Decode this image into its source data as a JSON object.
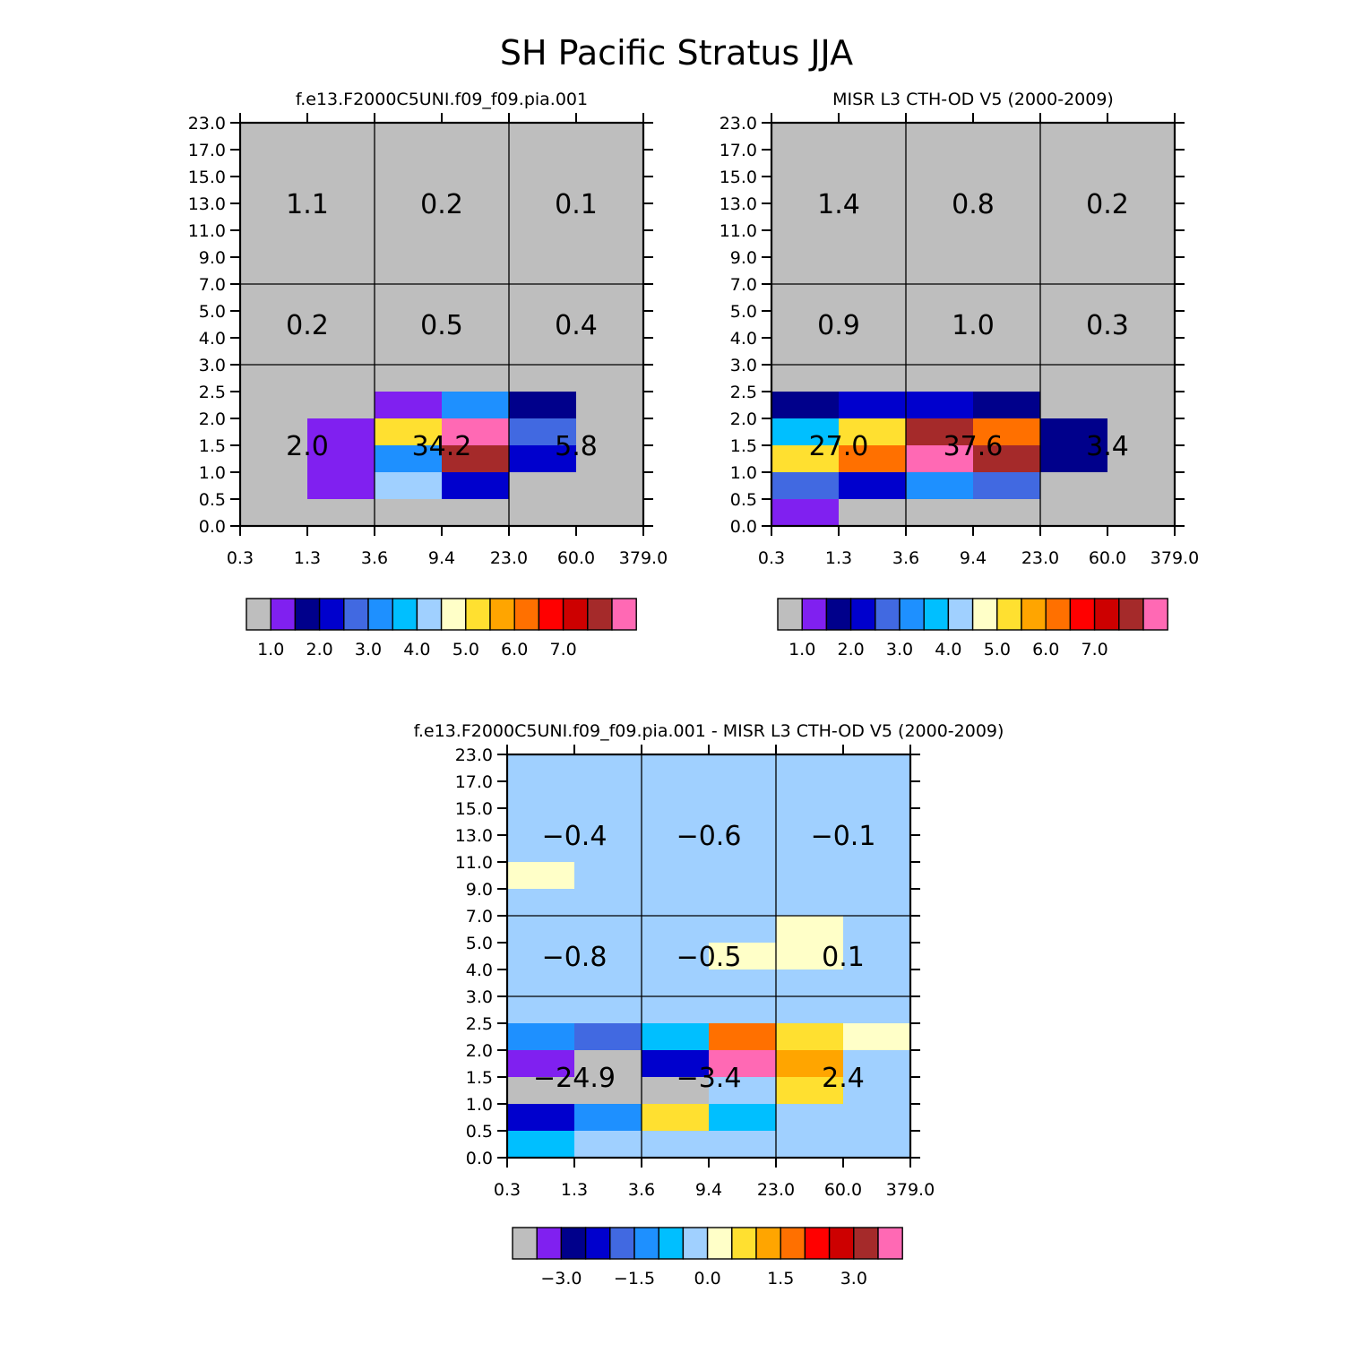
{
  "title": "SH Pacific Stratus JJA",
  "colors": {
    "abs_palette": [
      "#bebebe",
      "#8020f0",
      "#00008b",
      "#0000cd",
      "#4169e1",
      "#1e90ff",
      "#00bfff",
      "#a0d0ff",
      "#ffffc8",
      "#ffe030",
      "#ffa500",
      "#ff7000",
      "#ff0000",
      "#cd0000",
      "#a52a2a",
      "#ff69b4"
    ],
    "diff_palette": [
      "#bebebe",
      "#8020f0",
      "#00008b",
      "#0000cd",
      "#4169e1",
      "#1e90ff",
      "#00bfff",
      "#a0d0ff",
      "#ffffc8",
      "#ffe030",
      "#ffa500",
      "#ff7000",
      "#ff0000",
      "#cd0000",
      "#a52a2a",
      "#ff69b4"
    ]
  },
  "chart_data": [
    {
      "type": "heatmap",
      "title": "f.e13.F2000C5UNI.f09_f09.pia.001",
      "x_ticks": [
        "0.3",
        "1.3",
        "3.6",
        "9.4",
        "23.0",
        "60.0",
        "379.0"
      ],
      "y_ticks": [
        "0.0",
        "0.5",
        "1.0",
        "1.5",
        "2.0",
        "2.5",
        "3.0",
        "4.0",
        "5.0",
        "7.0",
        "9.0",
        "11.0",
        "13.0",
        "15.0",
        "17.0",
        "23.0"
      ],
      "group_y_bounds": [
        0,
        6,
        9,
        15
      ],
      "group_x_bounds": [
        0,
        2,
        4,
        6
      ],
      "background": 0,
      "cells": [
        {
          "x": 1,
          "y": 1,
          "c": 1
        },
        {
          "x": 1,
          "y": 2,
          "c": 1
        },
        {
          "x": 1,
          "y": 3,
          "c": 1
        },
        {
          "x": 2,
          "y": 1,
          "c": 7
        },
        {
          "x": 2,
          "y": 2,
          "c": 5
        },
        {
          "x": 2,
          "y": 3,
          "c": 9
        },
        {
          "x": 2,
          "y": 4,
          "c": 1
        },
        {
          "x": 3,
          "y": 1,
          "c": 3
        },
        {
          "x": 3,
          "y": 2,
          "c": 14
        },
        {
          "x": 3,
          "y": 3,
          "c": 15
        },
        {
          "x": 3,
          "y": 4,
          "c": 5
        },
        {
          "x": 4,
          "y": 2,
          "c": 3
        },
        {
          "x": 4,
          "y": 3,
          "c": 4
        },
        {
          "x": 4,
          "y": 4,
          "c": 2
        }
      ],
      "group_values": [
        {
          "label": "1.1",
          "gx": 0,
          "gy": 2
        },
        {
          "label": "0.2",
          "gx": 1,
          "gy": 2
        },
        {
          "label": "0.1",
          "gx": 2,
          "gy": 2
        },
        {
          "label": "0.2",
          "gx": 0,
          "gy": 1
        },
        {
          "label": "0.5",
          "gx": 1,
          "gy": 1
        },
        {
          "label": "0.4",
          "gx": 2,
          "gy": 1
        },
        {
          "label": "2.0",
          "gx": 0,
          "gy": 0
        },
        {
          "label": "34.2",
          "gx": 1,
          "gy": 0
        },
        {
          "label": "5.8",
          "gx": 2,
          "gy": 0
        }
      ],
      "colorbar_labels": [
        "1.0",
        "2.0",
        "3.0",
        "4.0",
        "5.0",
        "6.0",
        "7.0"
      ],
      "colorbar_boundaries": [
        1,
        3,
        5,
        7,
        9,
        11,
        13
      ]
    },
    {
      "type": "heatmap",
      "title": "MISR L3 CTH-OD V5 (2000-2009)",
      "x_ticks": [
        "0.3",
        "1.3",
        "3.6",
        "9.4",
        "23.0",
        "60.0",
        "379.0"
      ],
      "y_ticks": [
        "0.0",
        "0.5",
        "1.0",
        "1.5",
        "2.0",
        "2.5",
        "3.0",
        "4.0",
        "5.0",
        "7.0",
        "9.0",
        "11.0",
        "13.0",
        "15.0",
        "17.0",
        "23.0"
      ],
      "group_y_bounds": [
        0,
        6,
        9,
        15
      ],
      "group_x_bounds": [
        0,
        2,
        4,
        6
      ],
      "background": 0,
      "cells": [
        {
          "x": 0,
          "y": 0,
          "c": 1
        },
        {
          "x": 0,
          "y": 1,
          "c": 4
        },
        {
          "x": 0,
          "y": 2,
          "c": 9
        },
        {
          "x": 0,
          "y": 3,
          "c": 6
        },
        {
          "x": 0,
          "y": 4,
          "c": 2
        },
        {
          "x": 1,
          "y": 1,
          "c": 3
        },
        {
          "x": 1,
          "y": 2,
          "c": 11
        },
        {
          "x": 1,
          "y": 3,
          "c": 9
        },
        {
          "x": 1,
          "y": 4,
          "c": 3
        },
        {
          "x": 2,
          "y": 1,
          "c": 5
        },
        {
          "x": 2,
          "y": 2,
          "c": 15
        },
        {
          "x": 2,
          "y": 3,
          "c": 14
        },
        {
          "x": 2,
          "y": 4,
          "c": 3
        },
        {
          "x": 3,
          "y": 1,
          "c": 4
        },
        {
          "x": 3,
          "y": 2,
          "c": 14
        },
        {
          "x": 3,
          "y": 3,
          "c": 11
        },
        {
          "x": 3,
          "y": 4,
          "c": 2
        },
        {
          "x": 4,
          "y": 2,
          "c": 2
        },
        {
          "x": 4,
          "y": 3,
          "c": 2
        }
      ],
      "group_values": [
        {
          "label": "1.4",
          "gx": 0,
          "gy": 2
        },
        {
          "label": "0.8",
          "gx": 1,
          "gy": 2
        },
        {
          "label": "0.2",
          "gx": 2,
          "gy": 2
        },
        {
          "label": "0.9",
          "gx": 0,
          "gy": 1
        },
        {
          "label": "1.0",
          "gx": 1,
          "gy": 1
        },
        {
          "label": "0.3",
          "gx": 2,
          "gy": 1
        },
        {
          "label": "27.0",
          "gx": 0,
          "gy": 0
        },
        {
          "label": "37.6",
          "gx": 1,
          "gy": 0
        },
        {
          "label": "3.4",
          "gx": 2,
          "gy": 0
        }
      ],
      "colorbar_labels": [
        "1.0",
        "2.0",
        "3.0",
        "4.0",
        "5.0",
        "6.0",
        "7.0"
      ],
      "colorbar_boundaries": [
        1,
        3,
        5,
        7,
        9,
        11,
        13
      ]
    },
    {
      "type": "heatmap",
      "title": "f.e13.F2000C5UNI.f09_f09.pia.001 - MISR L3 CTH-OD V5 (2000-2009)",
      "x_ticks": [
        "0.3",
        "1.3",
        "3.6",
        "9.4",
        "23.0",
        "60.0",
        "379.0"
      ],
      "y_ticks": [
        "0.0",
        "0.5",
        "1.0",
        "1.5",
        "2.0",
        "2.5",
        "3.0",
        "4.0",
        "5.0",
        "7.0",
        "9.0",
        "11.0",
        "13.0",
        "15.0",
        "17.0",
        "23.0"
      ],
      "group_y_bounds": [
        0,
        6,
        9,
        15
      ],
      "group_x_bounds": [
        0,
        2,
        4,
        6
      ],
      "background": 7,
      "cells": [
        {
          "x": 0,
          "y": 0,
          "c": 6
        },
        {
          "x": 0,
          "y": 1,
          "c": 3
        },
        {
          "x": 0,
          "y": 2,
          "c": 0
        },
        {
          "x": 0,
          "y": 3,
          "c": 1
        },
        {
          "x": 0,
          "y": 4,
          "c": 5
        },
        {
          "x": 0,
          "y": 10,
          "c": 8
        },
        {
          "x": 1,
          "y": 1,
          "c": 5
        },
        {
          "x": 1,
          "y": 2,
          "c": 0
        },
        {
          "x": 1,
          "y": 3,
          "c": 0
        },
        {
          "x": 1,
          "y": 4,
          "c": 4
        },
        {
          "x": 2,
          "y": 1,
          "c": 9
        },
        {
          "x": 2,
          "y": 2,
          "c": 0
        },
        {
          "x": 2,
          "y": 3,
          "c": 3
        },
        {
          "x": 2,
          "y": 4,
          "c": 6
        },
        {
          "x": 3,
          "y": 1,
          "c": 6
        },
        {
          "x": 3,
          "y": 3,
          "c": 15
        },
        {
          "x": 3,
          "y": 4,
          "c": 11
        },
        {
          "x": 3,
          "y": 7,
          "c": 8
        },
        {
          "x": 4,
          "y": 2,
          "c": 9
        },
        {
          "x": 4,
          "y": 3,
          "c": 10
        },
        {
          "x": 4,
          "y": 4,
          "c": 9
        },
        {
          "x": 4,
          "y": 7,
          "c": 8
        },
        {
          "x": 4,
          "y": 8,
          "c": 8
        },
        {
          "x": 5,
          "y": 4,
          "c": 8
        }
      ],
      "group_values": [
        {
          "label": "−0.4",
          "gx": 0,
          "gy": 2
        },
        {
          "label": "−0.6",
          "gx": 1,
          "gy": 2
        },
        {
          "label": "−0.1",
          "gx": 2,
          "gy": 2
        },
        {
          "label": "−0.8",
          "gx": 0,
          "gy": 1
        },
        {
          "label": "−0.5",
          "gx": 1,
          "gy": 1
        },
        {
          "label": "0.1",
          "gx": 2,
          "gy": 1
        },
        {
          "label": "−24.9",
          "gx": 0,
          "gy": 0
        },
        {
          "label": "−3.4",
          "gx": 1,
          "gy": 0
        },
        {
          "label": "2.4",
          "gx": 2,
          "gy": 0
        }
      ],
      "colorbar_labels": [
        "−3.0",
        "−1.5",
        "0.0",
        "1.5",
        "3.0"
      ],
      "colorbar_boundaries": [
        2,
        5,
        8,
        11,
        14
      ]
    }
  ]
}
